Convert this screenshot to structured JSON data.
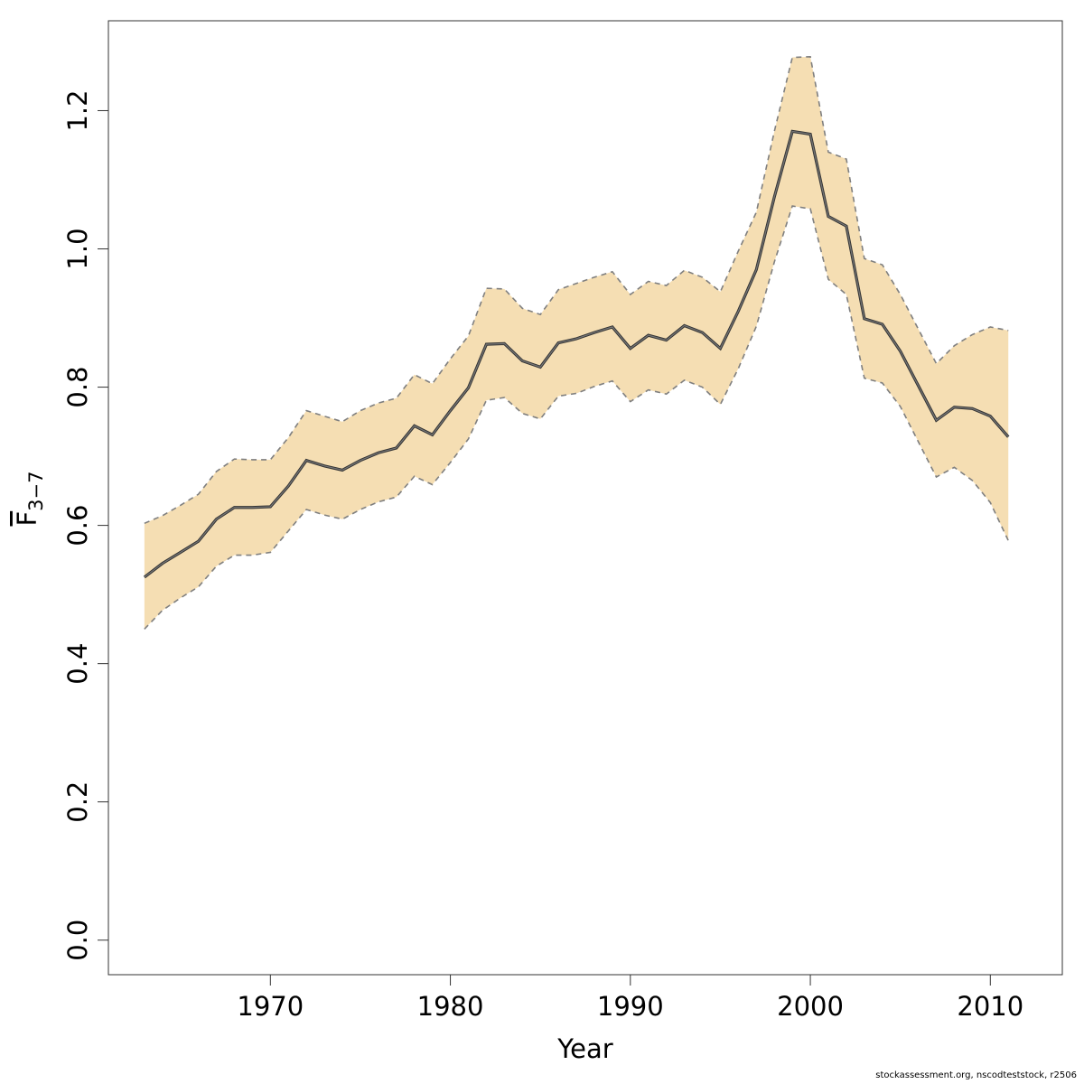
{
  "chart_data": {
    "type": "line",
    "xlabel": "Year",
    "ylabel": {
      "main": "F",
      "subscript": "3−7"
    },
    "xlim": [
      1961,
      2014
    ],
    "ylim": [
      -0.05,
      1.33
    ],
    "xticks": [
      1970,
      1980,
      1990,
      2000,
      2010
    ],
    "xtick_labels": [
      "1970",
      "1980",
      "1990",
      "2000",
      "2010"
    ],
    "yticks": [
      0.0,
      0.2,
      0.4,
      0.6,
      0.8,
      1.0,
      1.2
    ],
    "ytick_labels": [
      "0.0",
      "0.2",
      "0.4",
      "0.6",
      "0.8",
      "1.0",
      "1.2"
    ],
    "grid": false,
    "colors": {
      "band": "#f5deb3",
      "line": "#4d4d4d",
      "bounds": "#7f7f7f"
    },
    "x": [
      1963,
      1964,
      1965,
      1966,
      1967,
      1968,
      1969,
      1970,
      1971,
      1972,
      1973,
      1974,
      1975,
      1976,
      1977,
      1978,
      1979,
      1980,
      1981,
      1982,
      1983,
      1984,
      1985,
      1986,
      1987,
      1988,
      1989,
      1990,
      1991,
      1992,
      1993,
      1994,
      1995,
      1996,
      1997,
      1998,
      1999,
      2000,
      2001,
      2002,
      2003,
      2004,
      2005,
      2006,
      2007,
      2008,
      2009,
      2010,
      2011
    ],
    "series": [
      {
        "role": "estimate",
        "values": [
          0.525,
          0.545,
          0.561,
          0.577,
          0.609,
          0.626,
          0.626,
          0.627,
          0.657,
          0.694,
          0.686,
          0.68,
          0.694,
          0.705,
          0.712,
          0.744,
          0.731,
          0.766,
          0.799,
          0.862,
          0.863,
          0.838,
          0.829,
          0.864,
          0.87,
          0.879,
          0.887,
          0.856,
          0.875,
          0.868,
          0.889,
          0.879,
          0.856,
          0.91,
          0.97,
          1.075,
          1.17,
          1.166,
          1.047,
          1.033,
          0.899,
          0.891,
          0.852,
          0.802,
          0.752,
          0.771,
          0.769,
          0.758,
          0.728
        ]
      },
      {
        "role": "upper",
        "values": [
          0.603,
          0.614,
          0.629,
          0.645,
          0.678,
          0.696,
          0.695,
          0.695,
          0.727,
          0.766,
          0.758,
          0.75,
          0.766,
          0.777,
          0.784,
          0.818,
          0.805,
          0.841,
          0.874,
          0.943,
          0.942,
          0.914,
          0.905,
          0.941,
          0.95,
          0.959,
          0.967,
          0.934,
          0.953,
          0.947,
          0.969,
          0.959,
          0.938,
          0.997,
          1.053,
          1.17,
          1.277,
          1.278,
          1.14,
          1.13,
          0.986,
          0.977,
          0.934,
          0.884,
          0.834,
          0.86,
          0.876,
          0.887,
          0.882
        ]
      },
      {
        "role": "lower",
        "values": [
          0.45,
          0.477,
          0.495,
          0.511,
          0.541,
          0.557,
          0.557,
          0.561,
          0.592,
          0.623,
          0.615,
          0.609,
          0.623,
          0.634,
          0.641,
          0.671,
          0.659,
          0.691,
          0.725,
          0.781,
          0.785,
          0.762,
          0.754,
          0.787,
          0.791,
          0.801,
          0.809,
          0.779,
          0.796,
          0.79,
          0.81,
          0.8,
          0.775,
          0.827,
          0.888,
          0.981,
          1.062,
          1.058,
          0.956,
          0.934,
          0.813,
          0.806,
          0.772,
          0.721,
          0.67,
          0.684,
          0.665,
          0.633,
          0.578
        ]
      }
    ]
  },
  "footer": "stockassessment.org, nscodteststock, r2506"
}
